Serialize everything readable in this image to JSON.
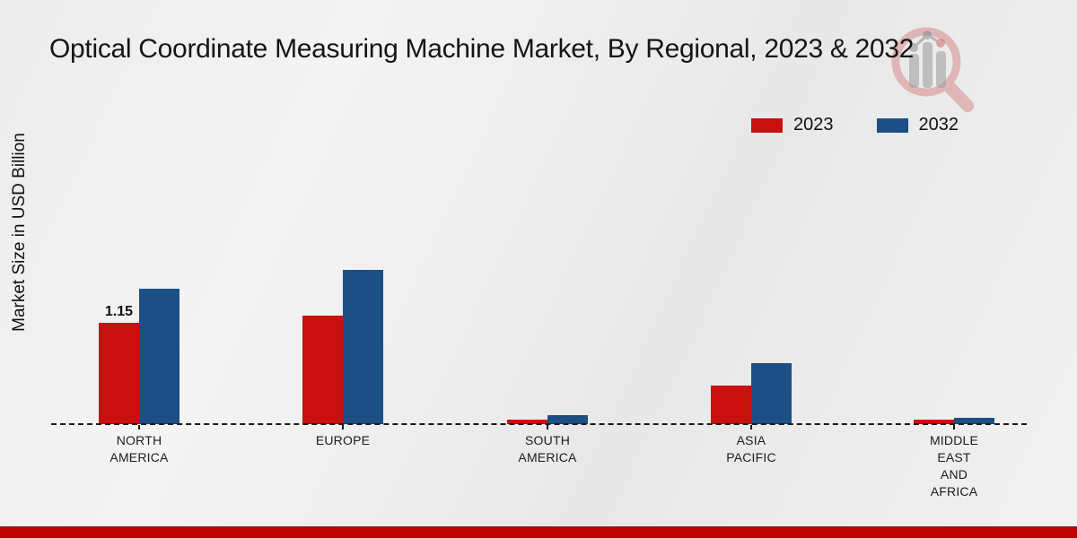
{
  "title": "Optical Coordinate Measuring Machine Market, By Regional, 2023 & 2032",
  "y_axis": {
    "label": "Market Size in USD Billion"
  },
  "legend": {
    "items": [
      {
        "label": "2023",
        "color": "#c9100f"
      },
      {
        "label": "2032",
        "color": "#1b4f86"
      }
    ]
  },
  "watermark": {
    "icon": "magnifier-bar-chart-logo"
  },
  "footer": {
    "stripe_color": "#bf0202"
  },
  "chart_data": {
    "type": "bar",
    "title": "Optical Coordinate Measuring Machine Market, By Regional, 2023 & 2032",
    "ylabel": "Market Size in USD Billion",
    "categories": [
      "NORTH AMERICA",
      "EUROPE",
      "SOUTH AMERICA",
      "ASIA PACIFIC",
      "MIDDLE EAST AND AFRICA"
    ],
    "series": [
      {
        "name": "2023",
        "color": "#c9100f",
        "values": [
          1.15,
          1.23,
          0.05,
          0.44,
          0.05
        ]
      },
      {
        "name": "2032",
        "color": "#1b4f86",
        "values": [
          1.54,
          1.76,
          0.1,
          0.69,
          0.07
        ]
      }
    ],
    "data_labels": [
      {
        "series_index": 0,
        "category_index": 0,
        "text": "1.15"
      }
    ],
    "ylim": [
      0,
      1.9
    ],
    "grid": false,
    "legend_position": "top-right",
    "baseline_style": "dashed"
  }
}
